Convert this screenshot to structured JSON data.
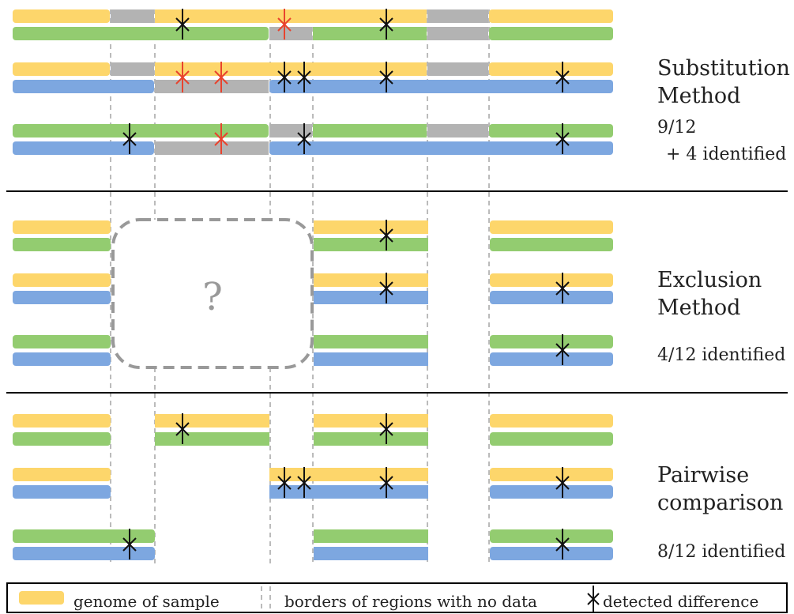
{
  "colors": {
    "yellow": "#FDD66B",
    "green": "#93CC70",
    "blue": "#7DA7E0",
    "gray": "#B3B3B3",
    "mark_default": "#111111",
    "mark_highlight": "#E8432E",
    "dashed_line": "#BBBBBB",
    "question_box": "#999999"
  },
  "sections": [
    {
      "title_line1": "Substitution",
      "title_line2": "Method",
      "stat_line1": "9/12",
      "stat_line2": "+ 4 identified"
    },
    {
      "title_line1": "Exclusion",
      "title_line2": "Method",
      "stat_line1": "4/12 identified",
      "stat_line2": ""
    },
    {
      "title_line1": "Pairwise",
      "title_line2": "comparison",
      "stat_line1": "8/12 identified",
      "stat_line2": ""
    }
  ],
  "question_mark": "?",
  "legend": {
    "genome_label": "genome of sample",
    "borders_label": "borders of regions with no data",
    "difference_label": "detected difference"
  }
}
